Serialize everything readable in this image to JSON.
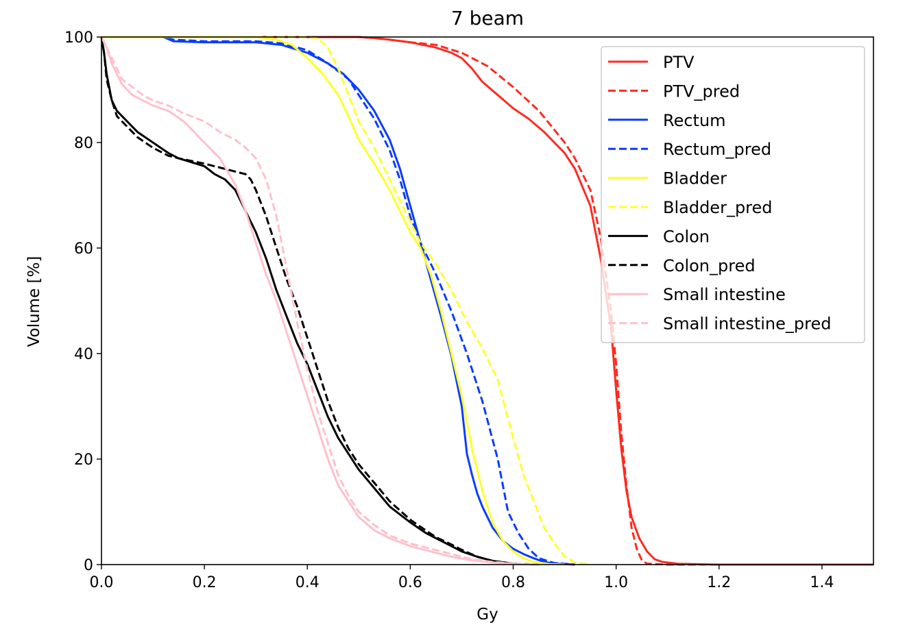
{
  "chart_data": {
    "type": "line",
    "title": "7 beam",
    "xlabel": "Gy",
    "ylabel": "Volume [%]",
    "xlim": [
      0,
      1.5
    ],
    "ylim": [
      0,
      100
    ],
    "xticks": [
      0.0,
      0.2,
      0.4,
      0.6,
      0.8,
      1.0,
      1.2,
      1.4
    ],
    "xtick_labels": [
      "0.0",
      "0.2",
      "0.4",
      "0.6",
      "0.8",
      "1.0",
      "1.2",
      "1.4"
    ],
    "yticks": [
      0,
      20,
      40,
      60,
      80,
      100
    ],
    "ytick_labels": [
      "0",
      "20",
      "40",
      "60",
      "80",
      "100"
    ],
    "grid": false,
    "legend_position": "top-right",
    "series": [
      {
        "name": "PTV",
        "color": "#ff2a1f",
        "dash": "solid",
        "x": [
          0,
          0.3,
          0.5,
          0.53,
          0.56,
          0.6,
          0.65,
          0.68,
          0.7,
          0.72,
          0.74,
          0.77,
          0.8,
          0.83,
          0.86,
          0.9,
          0.92,
          0.95,
          0.97,
          0.99,
          1.0,
          1.01,
          1.02,
          1.03,
          1.045,
          1.06,
          1.075,
          1.09,
          1.12,
          1.2,
          1.5
        ],
        "y": [
          100,
          100,
          100,
          99.8,
          99.5,
          99,
          98,
          97,
          96,
          94,
          91.5,
          89,
          86.5,
          84.5,
          82,
          78,
          75,
          68,
          58,
          45,
          33,
          22,
          14,
          9,
          5,
          2.5,
          1,
          0.5,
          0.15,
          0,
          0
        ]
      },
      {
        "name": "PTV_pred",
        "color": "#ff2a1f",
        "dash": "dashed",
        "x": [
          0,
          0.3,
          0.5,
          0.53,
          0.56,
          0.6,
          0.65,
          0.7,
          0.75,
          0.8,
          0.85,
          0.9,
          0.92,
          0.95,
          0.97,
          0.99,
          1.0,
          1.01,
          1.02,
          1.03,
          1.04,
          1.05,
          1.06,
          1.1,
          1.5
        ],
        "y": [
          100,
          100,
          100,
          99.8,
          99.5,
          99,
          98.5,
          97,
          94.5,
          90.5,
          86,
          80,
          77,
          71,
          62,
          48,
          38,
          25,
          15,
          7,
          3,
          0.8,
          0.2,
          0,
          0
        ]
      },
      {
        "name": "Rectum",
        "color": "#0a3cff",
        "dash": "solid",
        "x": [
          0,
          0.12,
          0.14,
          0.2,
          0.3,
          0.35,
          0.4,
          0.44,
          0.47,
          0.5,
          0.53,
          0.56,
          0.58,
          0.6,
          0.62,
          0.64,
          0.66,
          0.68,
          0.7,
          0.71,
          0.72,
          0.73,
          0.74,
          0.76,
          0.78,
          0.8,
          0.82,
          0.84,
          0.86,
          0.88,
          0.92
        ],
        "y": [
          100,
          100,
          99.2,
          99,
          99,
          98.5,
          97,
          95,
          93,
          90,
          86,
          80.5,
          75,
          68,
          61,
          54,
          47,
          39.5,
          30,
          21,
          17,
          13.5,
          11,
          7,
          4.5,
          3,
          2,
          1.2,
          0.5,
          0.2,
          0
        ]
      },
      {
        "name": "Rectum_pred",
        "color": "#0a3cff",
        "dash": "dashed",
        "x": [
          0,
          0.12,
          0.14,
          0.2,
          0.3,
          0.35,
          0.4,
          0.44,
          0.46,
          0.48,
          0.5,
          0.53,
          0.56,
          0.58,
          0.6,
          0.62,
          0.65,
          0.68,
          0.71,
          0.74,
          0.77,
          0.79,
          0.81,
          0.83,
          0.85,
          0.88,
          0.92
        ],
        "y": [
          100,
          100,
          99.5,
          99.2,
          99.2,
          98.8,
          97.5,
          95,
          93.5,
          92,
          89,
          84.5,
          78.5,
          73,
          66,
          61,
          55,
          48,
          40,
          31,
          20,
          10,
          6,
          3,
          1.2,
          0.3,
          0
        ]
      },
      {
        "name": "Bladder",
        "color": "#ffff2a",
        "dash": "solid",
        "x": [
          0,
          0.2,
          0.3,
          0.34,
          0.37,
          0.4,
          0.43,
          0.46,
          0.48,
          0.5,
          0.53,
          0.56,
          0.58,
          0.6,
          0.62,
          0.64,
          0.66,
          0.68,
          0.7,
          0.72,
          0.74,
          0.76,
          0.78,
          0.8,
          0.82,
          0.84,
          0.87,
          0.9
        ],
        "y": [
          100,
          100,
          100,
          99.5,
          98.5,
          96,
          93,
          89,
          85,
          80.5,
          76,
          71,
          67,
          63,
          60,
          55,
          48,
          40,
          32,
          22,
          14,
          8,
          4.5,
          2.5,
          1.2,
          0.5,
          0.1,
          0
        ]
      },
      {
        "name": "Bladder_pred",
        "color": "#ffff2a",
        "dash": "dashed",
        "x": [
          0,
          0.2,
          0.4,
          0.42,
          0.44,
          0.46,
          0.48,
          0.5,
          0.53,
          0.56,
          0.58,
          0.6,
          0.62,
          0.65,
          0.68,
          0.71,
          0.74,
          0.77,
          0.8,
          0.82,
          0.84,
          0.86,
          0.88,
          0.9,
          0.92,
          0.95
        ],
        "y": [
          100,
          100,
          100,
          99.8,
          98,
          94,
          89,
          84,
          79,
          73,
          69,
          65,
          61,
          57,
          52,
          46,
          41,
          35,
          24,
          17,
          12,
          7,
          4,
          1.5,
          0.4,
          0
        ]
      },
      {
        "name": "Colon",
        "color": "#000000",
        "dash": "solid",
        "x": [
          0,
          0.005,
          0.01,
          0.02,
          0.03,
          0.05,
          0.07,
          0.1,
          0.13,
          0.15,
          0.2,
          0.22,
          0.24,
          0.26,
          0.28,
          0.3,
          0.32,
          0.34,
          0.36,
          0.38,
          0.4,
          0.42,
          0.44,
          0.46,
          0.48,
          0.5,
          0.53,
          0.56,
          0.6,
          0.63,
          0.65,
          0.68,
          0.7,
          0.73,
          0.76,
          0.8,
          0.85
        ],
        "y": [
          100,
          97,
          93,
          88,
          86,
          84,
          82,
          80,
          78,
          77,
          75.5,
          74,
          73,
          71,
          67,
          63,
          58,
          52,
          47,
          42,
          38,
          33,
          28,
          24,
          21,
          18,
          14.5,
          11,
          8,
          6,
          5,
          3.5,
          2.5,
          1.5,
          0.7,
          0.2,
          0
        ]
      },
      {
        "name": "Colon_pred",
        "color": "#000000",
        "dash": "dashed",
        "x": [
          0,
          0.005,
          0.01,
          0.02,
          0.03,
          0.05,
          0.07,
          0.1,
          0.13,
          0.15,
          0.2,
          0.24,
          0.26,
          0.28,
          0.29,
          0.3,
          0.32,
          0.34,
          0.36,
          0.38,
          0.4,
          0.42,
          0.44,
          0.46,
          0.48,
          0.5,
          0.53,
          0.56,
          0.6,
          0.63,
          0.65,
          0.68,
          0.7,
          0.73,
          0.76,
          0.8,
          0.85
        ],
        "y": [
          100,
          97,
          92,
          88,
          85,
          83,
          81,
          79,
          77.5,
          77,
          76,
          75,
          74.5,
          74,
          73,
          71,
          66,
          60,
          54,
          49,
          43,
          37,
          31,
          26,
          22,
          19,
          15.5,
          12,
          8.5,
          6.5,
          5.2,
          3.8,
          2.8,
          1.5,
          0.7,
          0.2,
          0
        ]
      },
      {
        "name": "Small intestine",
        "color": "#ffc0cb",
        "dash": "solid",
        "x": [
          0,
          0.01,
          0.02,
          0.03,
          0.04,
          0.06,
          0.08,
          0.1,
          0.13,
          0.16,
          0.2,
          0.23,
          0.26,
          0.28,
          0.3,
          0.32,
          0.34,
          0.36,
          0.38,
          0.4,
          0.42,
          0.44,
          0.46,
          0.48,
          0.5,
          0.53,
          0.56,
          0.6,
          0.64,
          0.68,
          0.72,
          0.76,
          0.8,
          0.85
        ],
        "y": [
          100,
          98,
          95,
          93,
          91,
          89,
          88,
          87,
          86,
          84,
          80,
          77,
          72,
          67,
          61,
          55,
          50,
          44,
          38,
          32,
          26,
          20,
          15,
          12,
          9,
          6.5,
          5,
          3.5,
          2.5,
          1.5,
          0.8,
          0.4,
          0.15,
          0
        ]
      },
      {
        "name": "Small intestine_pred",
        "color": "#ffc0cb",
        "dash": "dashed",
        "x": [
          0,
          0.01,
          0.02,
          0.03,
          0.04,
          0.06,
          0.08,
          0.1,
          0.13,
          0.16,
          0.2,
          0.23,
          0.26,
          0.28,
          0.3,
          0.32,
          0.34,
          0.36,
          0.38,
          0.4,
          0.42,
          0.44,
          0.46,
          0.48,
          0.5,
          0.53,
          0.56,
          0.6,
          0.64,
          0.68,
          0.72,
          0.76,
          0.8,
          0.85
        ],
        "y": [
          100,
          98,
          96,
          94,
          92,
          90.5,
          89,
          88,
          87,
          85.5,
          84,
          82,
          80.5,
          79,
          77,
          73,
          66,
          56,
          46,
          37,
          29,
          23,
          17,
          13,
          10,
          7.5,
          5.5,
          4,
          3,
          2,
          1,
          0.5,
          0.2,
          0
        ]
      }
    ]
  }
}
